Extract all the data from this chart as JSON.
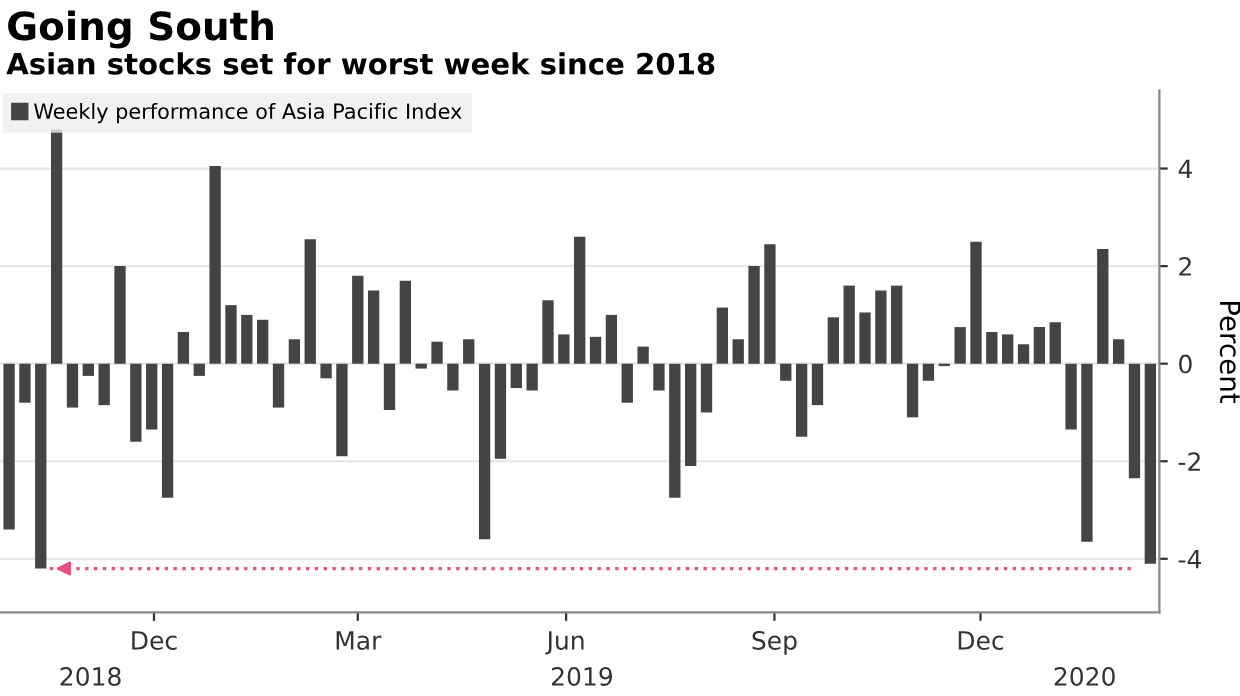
{
  "chart_data": {
    "type": "bar",
    "title": "Going South",
    "subtitle": "Asian stocks set for worst week since 2018",
    "ylabel": "Percent",
    "series": [
      {
        "name": "Weekly performance of Asia Pacific Index",
        "color": "#444444",
        "x": [
          "2018-10-12",
          "2018-10-19",
          "2018-10-26",
          "2018-11-02",
          "2018-11-09",
          "2018-11-16",
          "2018-11-23",
          "2018-11-30",
          "2018-12-07",
          "2018-12-14",
          "2018-12-21",
          "2018-12-28",
          "2019-01-04",
          "2019-01-11",
          "2019-01-18",
          "2019-01-25",
          "2019-02-01",
          "2019-02-08",
          "2019-02-15",
          "2019-02-22",
          "2019-03-01",
          "2019-03-08",
          "2019-03-15",
          "2019-03-22",
          "2019-03-29",
          "2019-04-05",
          "2019-04-12",
          "2019-04-19",
          "2019-04-26",
          "2019-05-03",
          "2019-05-10",
          "2019-05-17",
          "2019-05-24",
          "2019-05-31",
          "2019-06-07",
          "2019-06-14",
          "2019-06-21",
          "2019-06-28",
          "2019-07-05",
          "2019-07-12",
          "2019-07-19",
          "2019-07-26",
          "2019-08-02",
          "2019-08-09",
          "2019-08-16",
          "2019-08-23",
          "2019-08-30",
          "2019-09-06",
          "2019-09-13",
          "2019-09-20",
          "2019-09-27",
          "2019-10-04",
          "2019-10-11",
          "2019-10-18",
          "2019-10-25",
          "2019-11-01",
          "2019-11-08",
          "2019-11-15",
          "2019-11-22",
          "2019-11-29",
          "2019-12-06",
          "2019-12-13",
          "2019-12-20",
          "2019-12-27",
          "2020-01-03",
          "2020-01-10",
          "2020-01-17",
          "2020-01-24",
          "2020-01-31",
          "2020-02-07",
          "2020-02-14",
          "2020-02-21",
          "2020-02-28"
        ],
        "values": [
          -3.4,
          -0.8,
          -4.2,
          4.8,
          -0.9,
          -0.25,
          -0.85,
          2.0,
          -1.6,
          -1.35,
          -2.75,
          0.65,
          -0.25,
          4.05,
          1.2,
          1.0,
          0.9,
          -0.9,
          0.5,
          2.55,
          -0.3,
          -1.9,
          1.8,
          1.5,
          -0.95,
          1.7,
          -0.1,
          0.45,
          -0.55,
          0.5,
          -3.6,
          -1.95,
          -0.5,
          -0.55,
          1.3,
          0.6,
          2.6,
          0.55,
          1.0,
          -0.8,
          0.35,
          -0.55,
          -2.75,
          -2.1,
          -1.0,
          1.15,
          0.5,
          2.0,
          2.45,
          -0.35,
          -1.5,
          -0.85,
          0.95,
          1.6,
          1.05,
          1.5,
          1.6,
          -1.1,
          -0.35,
          -0.05,
          0.75,
          2.5,
          0.65,
          0.6,
          0.4,
          0.75,
          0.85,
          -1.35,
          -3.65,
          2.35,
          0.5,
          -2.35,
          -4.1
        ]
      },
      {
        "type": "line",
        "color": "#e8507a",
        "line_style": "dotted",
        "x": [
          "2018-10-30",
          "2020-02-21"
        ],
        "values": [
          -4.2,
          -4.2
        ]
      }
    ],
    "xlim": [
      "2018-10-08",
      "2020-03-03"
    ],
    "ylim": [
      -5.1,
      5.6
    ],
    "yticks": [
      -4,
      -2,
      0,
      2,
      4
    ],
    "xticks": [
      {
        "value": "2018-12-15",
        "label": "Dec"
      },
      {
        "value": "2019-03-15",
        "label": "Mar"
      },
      {
        "value": "2019-06-15",
        "label": "Jun"
      },
      {
        "value": "2019-09-15",
        "label": "Sep"
      },
      {
        "value": "2019-12-15",
        "label": "Dec"
      }
    ],
    "x2lim": [
      "2018-10-08",
      "2020-03-03"
    ],
    "x2ticks": [
      {
        "value": "2018-11-17",
        "label": "2018"
      },
      {
        "value": "2019-06-22",
        "label": "2019"
      },
      {
        "value": "2020-01-30",
        "label": "2020"
      }
    ],
    "grid": "y",
    "legend": "top left"
  }
}
